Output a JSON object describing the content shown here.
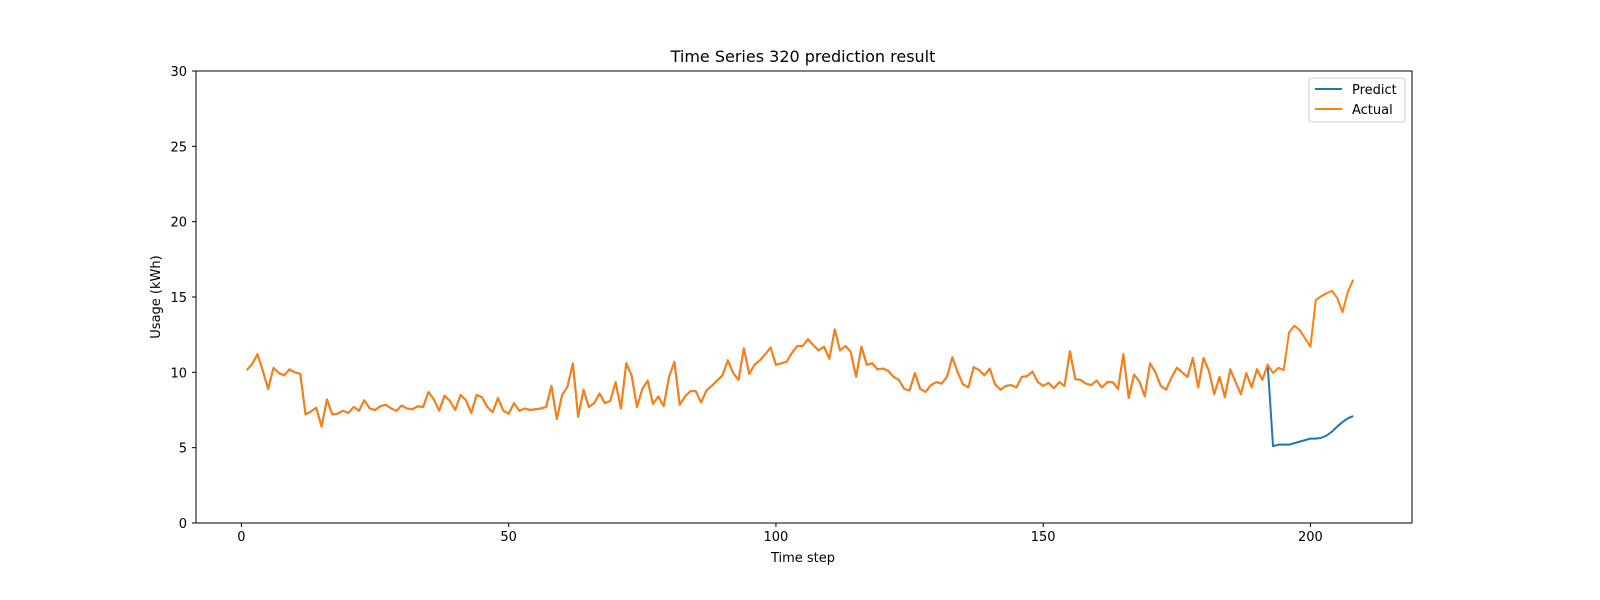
{
  "chart_data": {
    "type": "line",
    "title": "Time Series 320 prediction result",
    "xlabel": "Time step",
    "ylabel": "Usage (kWh)",
    "xlim": [
      -8.5,
      219
    ],
    "ylim": [
      0,
      30
    ],
    "xticks": [
      0,
      50,
      100,
      150,
      200
    ],
    "yticks": [
      0,
      5,
      10,
      15,
      20,
      25,
      30
    ],
    "grid": false,
    "legend_position": "top-right",
    "x_start": 1,
    "series": [
      {
        "name": "Predict",
        "color": "#1f77b4",
        "values": [
          10.15,
          10.55,
          11.2,
          10.1,
          8.9,
          10.3,
          9.95,
          9.8,
          10.2,
          10.0,
          9.9,
          7.2,
          7.4,
          7.65,
          6.4,
          8.2,
          7.2,
          7.25,
          7.45,
          7.3,
          7.7,
          7.45,
          8.15,
          7.6,
          7.5,
          7.75,
          7.85,
          7.6,
          7.45,
          7.8,
          7.6,
          7.55,
          7.75,
          7.7,
          8.7,
          8.2,
          7.45,
          8.45,
          8.1,
          7.5,
          8.5,
          8.15,
          7.3,
          8.5,
          8.35,
          7.7,
          7.35,
          8.3,
          7.45,
          7.25,
          7.95,
          7.45,
          7.6,
          7.5,
          7.55,
          7.6,
          7.7,
          9.1,
          6.9,
          8.5,
          9.05,
          10.6,
          7.05,
          8.85,
          7.7,
          7.95,
          8.6,
          7.95,
          8.1,
          9.35,
          7.6,
          10.6,
          9.8,
          7.7,
          8.9,
          9.45,
          7.9,
          8.4,
          7.75,
          9.7,
          10.7,
          7.85,
          8.4,
          8.75,
          8.75,
          8.0,
          8.8,
          9.1,
          9.45,
          9.8,
          10.8,
          9.95,
          9.5,
          11.6,
          9.9,
          10.5,
          10.8,
          11.2,
          11.65,
          10.5,
          10.6,
          10.7,
          11.3,
          11.75,
          11.75,
          12.2,
          11.8,
          11.45,
          11.7,
          10.9,
          12.85,
          11.45,
          11.75,
          11.35,
          9.7,
          11.7,
          10.5,
          10.6,
          10.2,
          10.25,
          10.1,
          9.7,
          9.5,
          8.9,
          8.8,
          9.95,
          8.9,
          8.7,
          9.15,
          9.35,
          9.25,
          9.7,
          11.0,
          10.0,
          9.2,
          9.0,
          10.35,
          10.15,
          9.8,
          10.25,
          9.2,
          8.85,
          9.1,
          9.15,
          9.0,
          9.7,
          9.75,
          10.05,
          9.35,
          9.1,
          9.3,
          8.95,
          9.35,
          9.1,
          11.4,
          9.55,
          9.5,
          9.25,
          9.15,
          9.45,
          9.0,
          9.35,
          9.35,
          8.9,
          11.2,
          8.3,
          9.85,
          9.4,
          8.4,
          10.6,
          10.0,
          9.1,
          8.85,
          9.65,
          10.3,
          10.0,
          9.7,
          10.95,
          9.0,
          10.95,
          10.1,
          8.55,
          9.7,
          8.35,
          10.2,
          9.35,
          8.55,
          9.95,
          9.0,
          10.2,
          9.5,
          10.5,
          5.1,
          5.2,
          5.2,
          5.2,
          5.3,
          5.4,
          5.5,
          5.6,
          5.6,
          5.65,
          5.8,
          6.05,
          6.4,
          6.7,
          6.95,
          7.1
        ]
      },
      {
        "name": "Actual",
        "color": "#ff7f0e",
        "values": [
          10.15,
          10.55,
          11.2,
          10.1,
          8.9,
          10.3,
          9.95,
          9.8,
          10.2,
          10.0,
          9.9,
          7.2,
          7.4,
          7.65,
          6.4,
          8.2,
          7.2,
          7.25,
          7.45,
          7.3,
          7.7,
          7.45,
          8.15,
          7.6,
          7.5,
          7.75,
          7.85,
          7.6,
          7.45,
          7.8,
          7.6,
          7.55,
          7.75,
          7.7,
          8.7,
          8.2,
          7.45,
          8.45,
          8.1,
          7.5,
          8.5,
          8.15,
          7.3,
          8.5,
          8.35,
          7.7,
          7.35,
          8.3,
          7.45,
          7.25,
          7.95,
          7.45,
          7.6,
          7.5,
          7.55,
          7.6,
          7.7,
          9.1,
          6.9,
          8.5,
          9.05,
          10.6,
          7.05,
          8.85,
          7.7,
          7.95,
          8.6,
          7.95,
          8.1,
          9.35,
          7.6,
          10.6,
          9.8,
          7.7,
          8.9,
          9.45,
          7.9,
          8.4,
          7.75,
          9.7,
          10.7,
          7.85,
          8.4,
          8.75,
          8.75,
          8.0,
          8.8,
          9.1,
          9.45,
          9.8,
          10.8,
          9.95,
          9.5,
          11.6,
          9.9,
          10.5,
          10.8,
          11.2,
          11.65,
          10.5,
          10.6,
          10.7,
          11.3,
          11.75,
          11.75,
          12.2,
          11.8,
          11.45,
          11.7,
          10.9,
          12.85,
          11.45,
          11.75,
          11.35,
          9.7,
          11.7,
          10.5,
          10.6,
          10.2,
          10.25,
          10.1,
          9.7,
          9.5,
          8.9,
          8.8,
          9.95,
          8.9,
          8.7,
          9.15,
          9.35,
          9.25,
          9.7,
          11.0,
          10.0,
          9.2,
          9.0,
          10.35,
          10.15,
          9.8,
          10.25,
          9.2,
          8.85,
          9.1,
          9.15,
          9.0,
          9.7,
          9.75,
          10.05,
          9.35,
          9.1,
          9.3,
          8.95,
          9.35,
          9.1,
          11.4,
          9.55,
          9.5,
          9.25,
          9.15,
          9.45,
          9.0,
          9.35,
          9.35,
          8.9,
          11.2,
          8.3,
          9.85,
          9.4,
          8.4,
          10.6,
          10.0,
          9.1,
          8.85,
          9.65,
          10.3,
          10.0,
          9.7,
          10.95,
          9.0,
          10.95,
          10.1,
          8.55,
          9.7,
          8.35,
          10.2,
          9.35,
          8.55,
          9.95,
          9.0,
          10.2,
          9.5,
          10.5,
          9.95,
          10.3,
          10.15,
          12.65,
          13.1,
          12.8,
          12.25,
          11.7,
          14.8,
          15.05,
          15.25,
          15.4,
          14.95,
          14.0,
          15.35,
          16.15
        ]
      }
    ]
  }
}
